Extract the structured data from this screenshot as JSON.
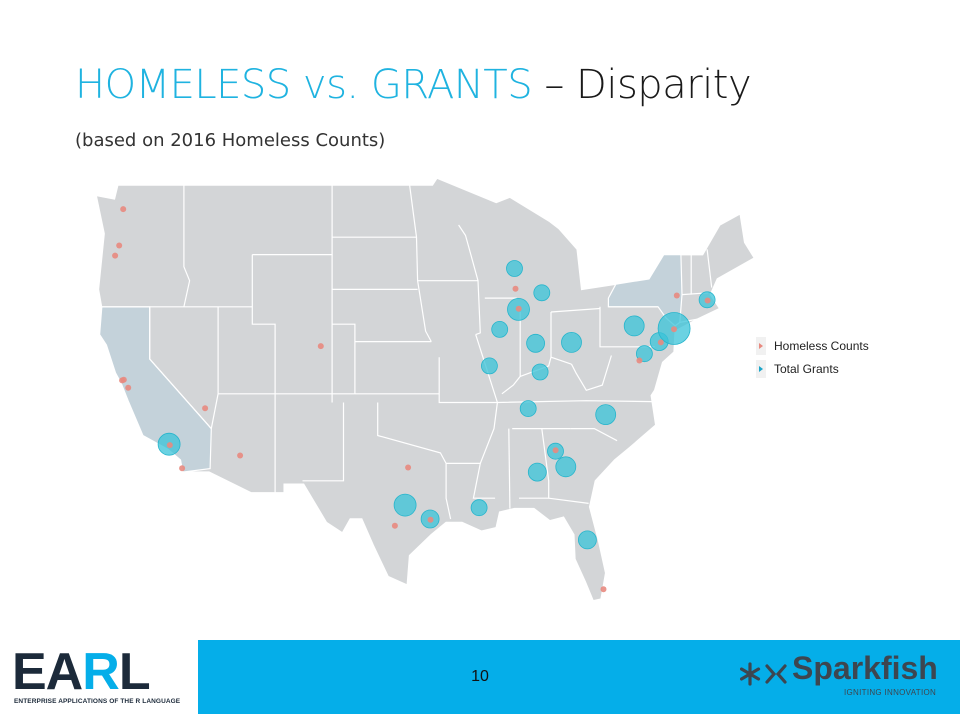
{
  "slide": {
    "title_accent": "HOMELESS vs. GRANTS",
    "title_rest": " – Disparity",
    "subtitle": "(based on 2016 Homeless Counts)",
    "page_number": "10"
  },
  "legend": {
    "items": [
      {
        "label": "Homeless Counts",
        "color": "#e8897f"
      },
      {
        "label": "Total Grants",
        "color": "#1aa6c9"
      }
    ]
  },
  "colors": {
    "accent": "#1fb3e0",
    "footer_bar": "#05aee9",
    "state_fill": "#d3d5d7",
    "state_highlight": "#c4d2da",
    "grant_bubble": "#39c3d8",
    "homeless_dot": "#e8897f"
  },
  "logos": {
    "earl": {
      "part1": "EA",
      "part2": "R",
      "part3": "L",
      "tagline": "ENTERPRISE APPLICATIONS OF THE R LANGUAGE"
    },
    "sparkfish": {
      "name": "Sparkfish",
      "tagline": "IGNITING INNOVATION"
    }
  },
  "map_data": {
    "homeless_points": [
      {
        "lon": -122.33,
        "lat": 47.61
      },
      {
        "lon": -122.68,
        "lat": 45.52
      },
      {
        "lon": -123.04,
        "lat": 44.94
      },
      {
        "lon": -122.42,
        "lat": 37.77
      },
      {
        "lon": -122.27,
        "lat": 37.8
      },
      {
        "lon": -121.89,
        "lat": 37.34
      },
      {
        "lon": -118.24,
        "lat": 34.05
      },
      {
        "lon": -117.16,
        "lat": 32.72
      },
      {
        "lon": -115.14,
        "lat": 36.17
      },
      {
        "lon": -112.07,
        "lat": 33.45
      },
      {
        "lon": -104.99,
        "lat": 39.74
      },
      {
        "lon": -97.33,
        "lat": 32.76
      },
      {
        "lon": -98.49,
        "lat": 29.42
      },
      {
        "lon": -95.37,
        "lat": 29.76
      },
      {
        "lon": -87.91,
        "lat": 43.04
      },
      {
        "lon": -87.63,
        "lat": 41.88
      },
      {
        "lon": -84.39,
        "lat": 33.75
      },
      {
        "lon": -80.19,
        "lat": 25.76
      },
      {
        "lon": -77.04,
        "lat": 38.91
      },
      {
        "lon": -75.16,
        "lat": 39.95
      },
      {
        "lon": -74.01,
        "lat": 40.71
      },
      {
        "lon": -73.76,
        "lat": 42.65
      },
      {
        "lon": -71.06,
        "lat": 42.36
      }
    ],
    "grant_points": [
      {
        "lon": -122.4,
        "lat": 47.6,
        "size": 0
      },
      {
        "lon": -118.3,
        "lat": 34.1,
        "size": 11
      },
      {
        "lon": -97.6,
        "lat": 30.6,
        "size": 11
      },
      {
        "lon": -95.4,
        "lat": 29.8,
        "size": 9
      },
      {
        "lon": -91.1,
        "lat": 30.45,
        "size": 8
      },
      {
        "lon": -88.0,
        "lat": 44.2,
        "size": 8
      },
      {
        "lon": -87.65,
        "lat": 41.85,
        "size": 11
      },
      {
        "lon": -89.3,
        "lat": 40.7,
        "size": 8
      },
      {
        "lon": -85.6,
        "lat": 42.8,
        "size": 8
      },
      {
        "lon": -86.15,
        "lat": 39.9,
        "size": 9
      },
      {
        "lon": -83.0,
        "lat": 39.95,
        "size": 10
      },
      {
        "lon": -90.2,
        "lat": 38.6,
        "size": 8
      },
      {
        "lon": -85.75,
        "lat": 38.25,
        "size": 8
      },
      {
        "lon": -86.8,
        "lat": 36.15,
        "size": 8
      },
      {
        "lon": -80.0,
        "lat": 35.8,
        "size": 10
      },
      {
        "lon": -77.5,
        "lat": 40.9,
        "size": 10
      },
      {
        "lon": -76.6,
        "lat": 39.3,
        "size": 8
      },
      {
        "lon": -75.3,
        "lat": 40.0,
        "size": 9
      },
      {
        "lon": -74.0,
        "lat": 40.75,
        "size": 16
      },
      {
        "lon": -71.1,
        "lat": 42.4,
        "size": 8
      },
      {
        "lon": -84.4,
        "lat": 33.7,
        "size": 8
      },
      {
        "lon": -83.5,
        "lat": 32.8,
        "size": 10
      },
      {
        "lon": -86.0,
        "lat": 32.5,
        "size": 9
      },
      {
        "lon": -81.6,
        "lat": 28.6,
        "size": 9
      }
    ]
  }
}
